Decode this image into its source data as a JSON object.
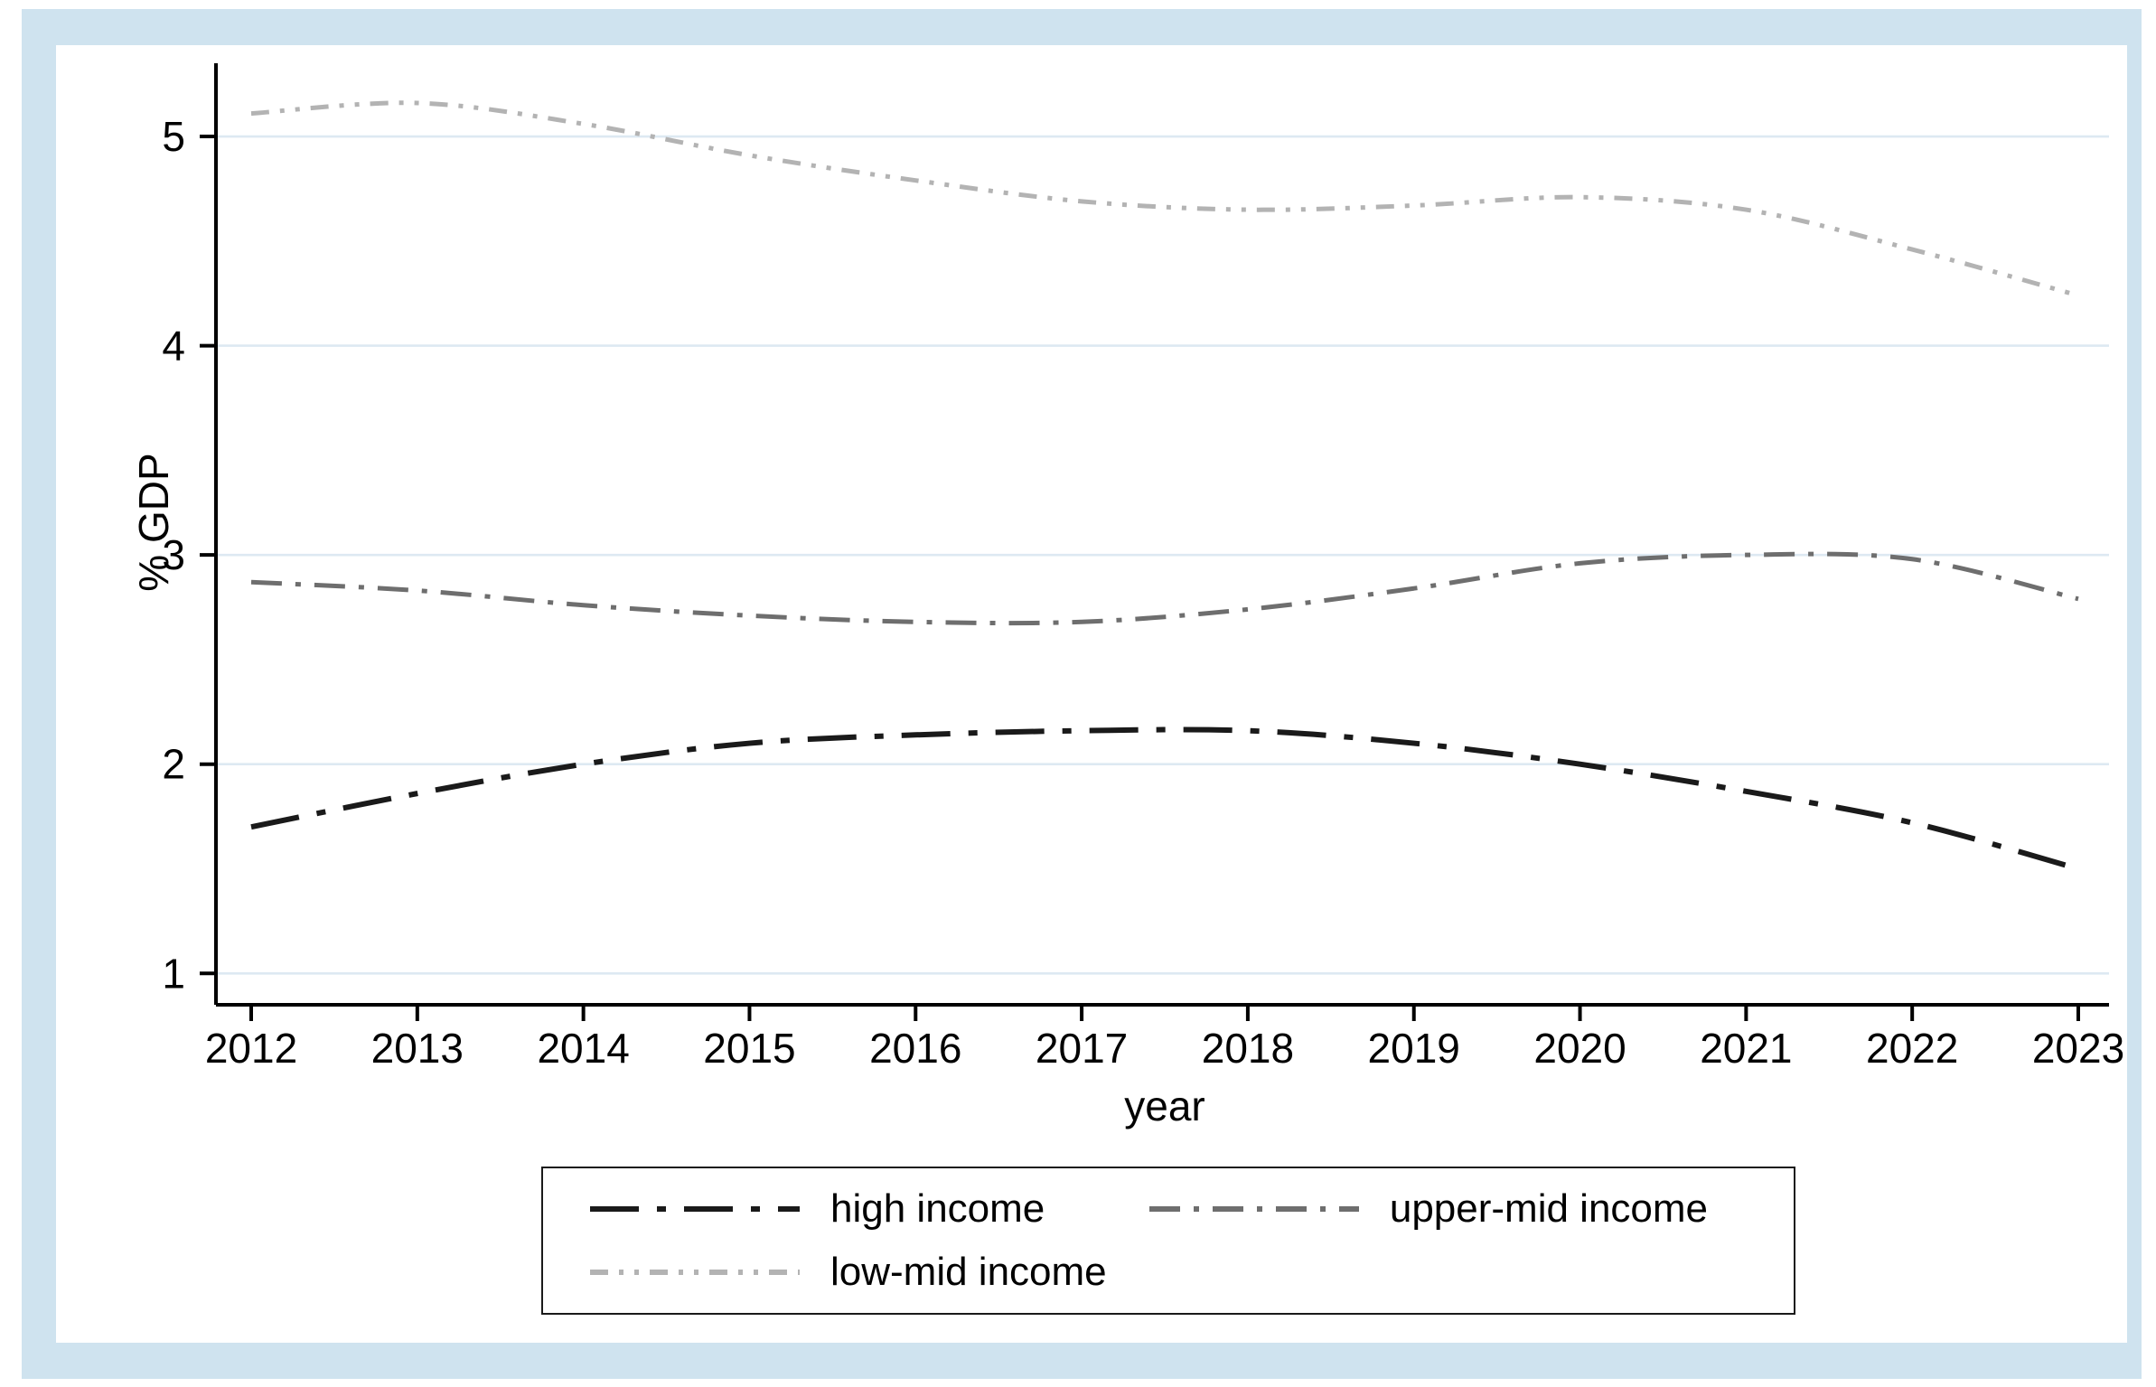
{
  "figure": {
    "background_color": "#cfe3ef",
    "plot_background": "#ffffff",
    "gridline_color": "#dde9f2",
    "axis_color": "#000000"
  },
  "chart_data": {
    "type": "line",
    "title": "",
    "xlabel": "year",
    "ylabel": "% GDP",
    "x": [
      2012,
      2013,
      2014,
      2015,
      2016,
      2017,
      2018,
      2019,
      2020,
      2021,
      2022,
      2023
    ],
    "x_tick_labels": [
      "2012",
      "2013",
      "2014",
      "2015",
      "2016",
      "2017",
      "2018",
      "2019",
      "2020",
      "2021",
      "2022",
      "2023"
    ],
    "y_ticks": [
      1,
      2,
      3,
      4,
      5
    ],
    "ylim": [
      0.85,
      5.35
    ],
    "grid": true,
    "legend_position": "bottom",
    "series": [
      {
        "name": "high income",
        "color": "#1a1a1a",
        "dash": "54 20 10 20",
        "width": 6,
        "values": [
          1.7,
          1.86,
          2.0,
          2.1,
          2.14,
          2.16,
          2.16,
          2.1,
          2.0,
          1.87,
          1.72,
          1.5
        ]
      },
      {
        "name": "upper-mid income",
        "color": "#6e6e6e",
        "dash": "34 15 6 15",
        "width": 5,
        "values": [
          2.87,
          2.83,
          2.76,
          2.71,
          2.68,
          2.68,
          2.74,
          2.84,
          2.96,
          3.0,
          2.98,
          2.79
        ]
      },
      {
        "name": "low-mid income",
        "color": "#b3b3b3",
        "dash": "20 12 5 12 5 12",
        "width": 5,
        "values": [
          5.11,
          5.16,
          5.06,
          4.91,
          4.79,
          4.69,
          4.65,
          4.67,
          4.71,
          4.65,
          4.46,
          4.24
        ]
      }
    ]
  }
}
